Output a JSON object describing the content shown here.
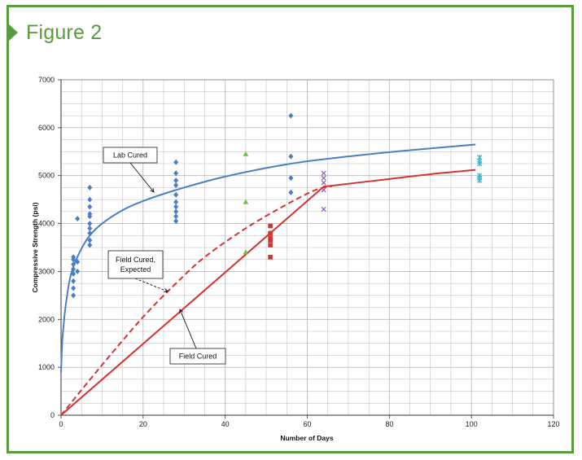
{
  "figure": {
    "label": "Figure 2"
  },
  "colors": {
    "frame": "#5b9b3f",
    "lab": "#4a7fc3",
    "field": "#d33433",
    "expected": "#d33433",
    "green_pts": "#6cbf3f",
    "purple_pts": "#8e5bb8",
    "cyan_pts": "#38b7c9",
    "grid": "#b9b9b9"
  },
  "chart_data": {
    "type": "scatter",
    "title": "",
    "xlabel": "Number of Days",
    "ylabel": "Compressive Strength (psi)",
    "xlim": [
      0,
      120
    ],
    "ylim": [
      0,
      7000
    ],
    "xticks": [
      0,
      20,
      40,
      60,
      80,
      100,
      120
    ],
    "yticks": [
      0,
      1000,
      2000,
      3000,
      4000,
      5000,
      6000,
      7000
    ],
    "grid": true,
    "series": [
      {
        "kind": "points",
        "marker": "diamond",
        "color": "#4a7fc3",
        "points": [
          [
            3,
            2500
          ],
          [
            3,
            2650
          ],
          [
            3,
            2800
          ],
          [
            3,
            2950
          ],
          [
            3,
            3050
          ],
          [
            3,
            3150
          ],
          [
            3,
            3250
          ],
          [
            3,
            3300
          ],
          [
            4,
            3000
          ],
          [
            4,
            3200
          ],
          [
            4,
            4100
          ],
          [
            7,
            3550
          ],
          [
            7,
            3650
          ],
          [
            7,
            3800
          ],
          [
            7,
            3900
          ],
          [
            7,
            4000
          ],
          [
            7,
            4150
          ],
          [
            7,
            4200
          ],
          [
            7,
            4350
          ],
          [
            7,
            4500
          ],
          [
            7,
            4750
          ],
          [
            28,
            4050
          ],
          [
            28,
            4150
          ],
          [
            28,
            4250
          ],
          [
            28,
            4350
          ],
          [
            28,
            4450
          ],
          [
            28,
            4600
          ],
          [
            28,
            4800
          ],
          [
            28,
            4900
          ],
          [
            28,
            5050
          ],
          [
            28,
            5280
          ],
          [
            56,
            4650
          ],
          [
            56,
            4950
          ],
          [
            56,
            5400
          ],
          [
            56,
            6250
          ]
        ]
      },
      {
        "kind": "points",
        "marker": "triangle",
        "color": "#6cbf3f",
        "points": [
          [
            45,
            3400
          ],
          [
            45,
            4450
          ],
          [
            45,
            5450
          ]
        ]
      },
      {
        "kind": "points",
        "marker": "square",
        "color": "#d33433",
        "points": [
          [
            51,
            3300
          ],
          [
            51,
            3550
          ],
          [
            51,
            3650
          ],
          [
            51,
            3700
          ],
          [
            51,
            3800
          ],
          [
            51,
            3950
          ]
        ]
      },
      {
        "kind": "points",
        "marker": "x",
        "color": "#8e5bb8",
        "points": [
          [
            64,
            4300
          ],
          [
            64,
            4700
          ],
          [
            64,
            4850
          ],
          [
            64,
            4950
          ],
          [
            64,
            5050
          ]
        ]
      },
      {
        "kind": "points",
        "marker": "star",
        "color": "#38b7c9",
        "points": [
          [
            102,
            4900
          ],
          [
            102,
            4950
          ],
          [
            102,
            5000
          ],
          [
            102,
            5250
          ],
          [
            102,
            5300
          ],
          [
            102,
            5380
          ]
        ]
      },
      {
        "kind": "curve",
        "style": "solid",
        "color": "#4a7fc3",
        "points": [
          [
            0,
            900
          ],
          [
            0.3,
            1550
          ],
          [
            0.6,
            1850
          ],
          [
            1,
            2200
          ],
          [
            2,
            2780
          ],
          [
            3,
            3100
          ],
          [
            5,
            3480
          ],
          [
            7,
            3750
          ],
          [
            10,
            4000
          ],
          [
            15,
            4280
          ],
          [
            20,
            4470
          ],
          [
            28,
            4700
          ],
          [
            40,
            4980
          ],
          [
            56,
            5250
          ],
          [
            70,
            5400
          ],
          [
            85,
            5530
          ],
          [
            101,
            5650
          ]
        ]
      },
      {
        "kind": "curve",
        "style": "dashed",
        "color": "#d33433",
        "points": [
          [
            0,
            0
          ],
          [
            10,
            1050
          ],
          [
            20,
            2050
          ],
          [
            28,
            2750
          ],
          [
            35,
            3300
          ],
          [
            45,
            3900
          ],
          [
            55,
            4400
          ],
          [
            62,
            4700
          ],
          [
            66,
            4780
          ]
        ]
      },
      {
        "kind": "curve",
        "style": "solid",
        "color": "#d33433",
        "points": [
          [
            0,
            0
          ],
          [
            64,
            4770
          ],
          [
            80,
            4930
          ],
          [
            90,
            5030
          ],
          [
            101,
            5120
          ]
        ]
      }
    ],
    "annotations": [
      {
        "text": "Lab Cured"
      },
      {
        "text": [
          "Field Cured,",
          "Expected"
        ]
      },
      {
        "text": "Field Cured"
      }
    ]
  }
}
